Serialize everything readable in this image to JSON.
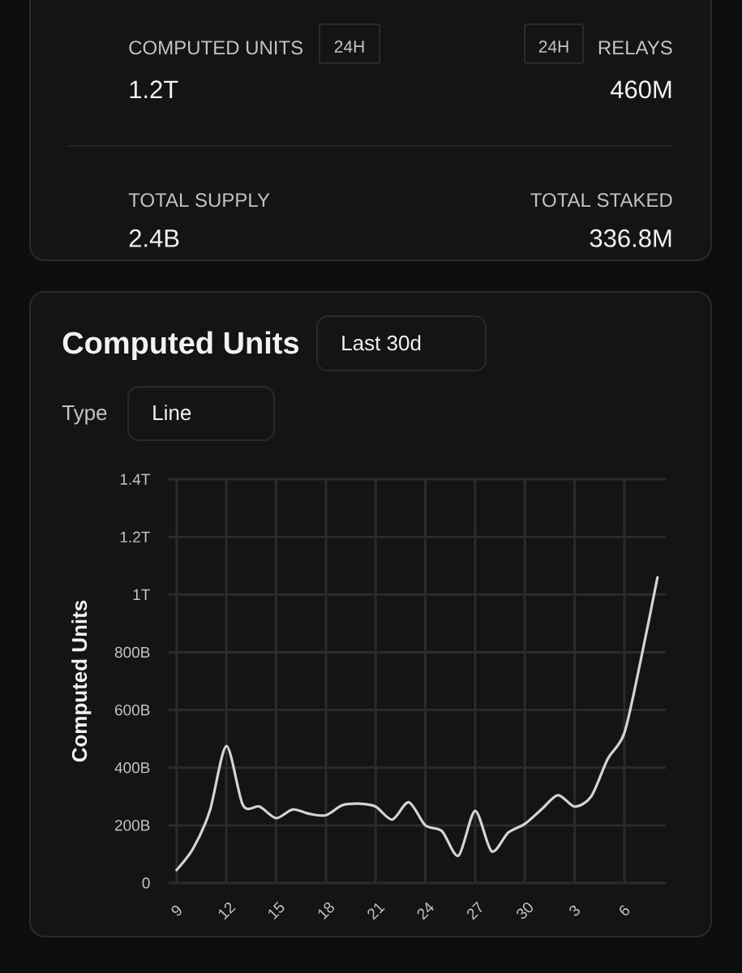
{
  "chart_data": {
    "type": "line",
    "title": "Computed Units",
    "ylabel": "Computed Units",
    "annotations": [
      "COMPUTED UNITS",
      "24H",
      "24H",
      "RELAYS",
      "1.2T",
      "460M",
      "TOTAL SUPPLY",
      "TOTAL STAKED",
      "2.4B",
      "336.8M",
      "Last 30d",
      "Type",
      "Line"
    ],
    "categories": [
      "9",
      null,
      null,
      "12",
      null,
      null,
      "15",
      null,
      null,
      "18",
      null,
      null,
      "21",
      null,
      null,
      "24",
      null,
      null,
      "27",
      null,
      null,
      "30",
      null,
      null,
      "3",
      null,
      null,
      "6",
      null,
      null
    ],
    "values": [
      45000000000,
      120000000000,
      250000000000,
      475000000000,
      270000000000,
      265000000000,
      225000000000,
      255000000000,
      240000000000,
      235000000000,
      270000000000,
      275000000000,
      265000000000,
      220000000000,
      280000000000,
      200000000000,
      180000000000,
      95000000000,
      250000000000,
      110000000000,
      175000000000,
      205000000000,
      255000000000,
      305000000000,
      265000000000,
      300000000000,
      430000000000,
      520000000000,
      775000000000,
      1060000000000
    ],
    "color": "#d4d4d4",
    "ylim": [
      0,
      1400000000000
    ],
    "yticks": [
      0,
      {
        "value": 200000000000,
        "label": "200B"
      },
      {
        "value": 400000000000,
        "label": "400B"
      },
      {
        "value": 600000000000,
        "label": "600B"
      },
      {
        "value": 800000000000,
        "label": "800B"
      },
      {
        "value": 1000000000000,
        "label": "1T"
      },
      {
        "value": 1200000000000,
        "label": "1.2T"
      },
      {
        "value": 1400000000000,
        "label": "1.4T"
      }
    ],
    "grid": true
  }
}
